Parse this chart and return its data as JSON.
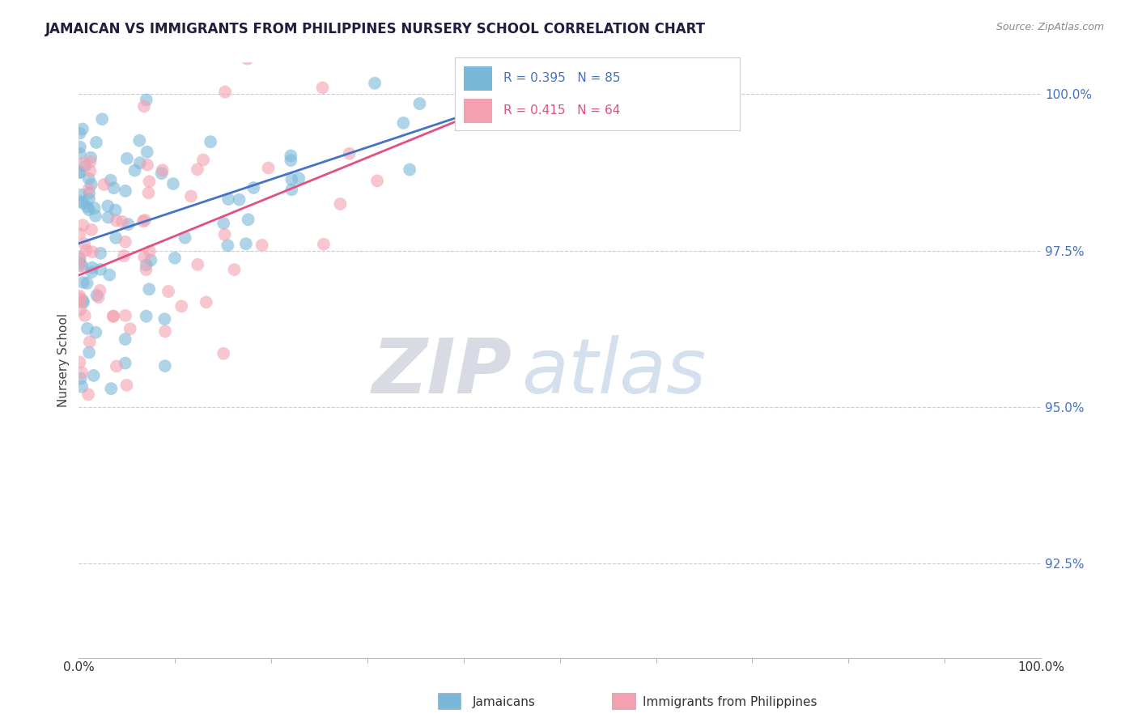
{
  "title": "JAMAICAN VS IMMIGRANTS FROM PHILIPPINES NURSERY SCHOOL CORRELATION CHART",
  "source_text": "Source: ZipAtlas.com",
  "ylabel": "Nursery School",
  "xlim": [
    0.0,
    1.0
  ],
  "ylim": [
    0.91,
    1.005
  ],
  "x_tick_labels": [
    "0.0%",
    "100.0%"
  ],
  "y_ticks": [
    0.925,
    0.95,
    0.975,
    1.0
  ],
  "y_tick_labels": [
    "92.5%",
    "95.0%",
    "97.5%",
    "100.0%"
  ],
  "legend_labels": [
    "Jamaicans",
    "Immigrants from Philippines"
  ],
  "r_blue": 0.395,
  "n_blue": 85,
  "r_pink": 0.415,
  "n_pink": 64,
  "blue_color": "#7ab8d9",
  "pink_color": "#f4a0b0",
  "blue_line_color": "#4472c4",
  "pink_line_color": "#e05080",
  "watermark_zip": "ZIP",
  "watermark_atlas": "atlas",
  "title_color": "#1f1f3d",
  "source_color": "#888888",
  "ytick_color": "#4472c4",
  "xtick_color": "#333333",
  "grid_color": "#cccccc"
}
